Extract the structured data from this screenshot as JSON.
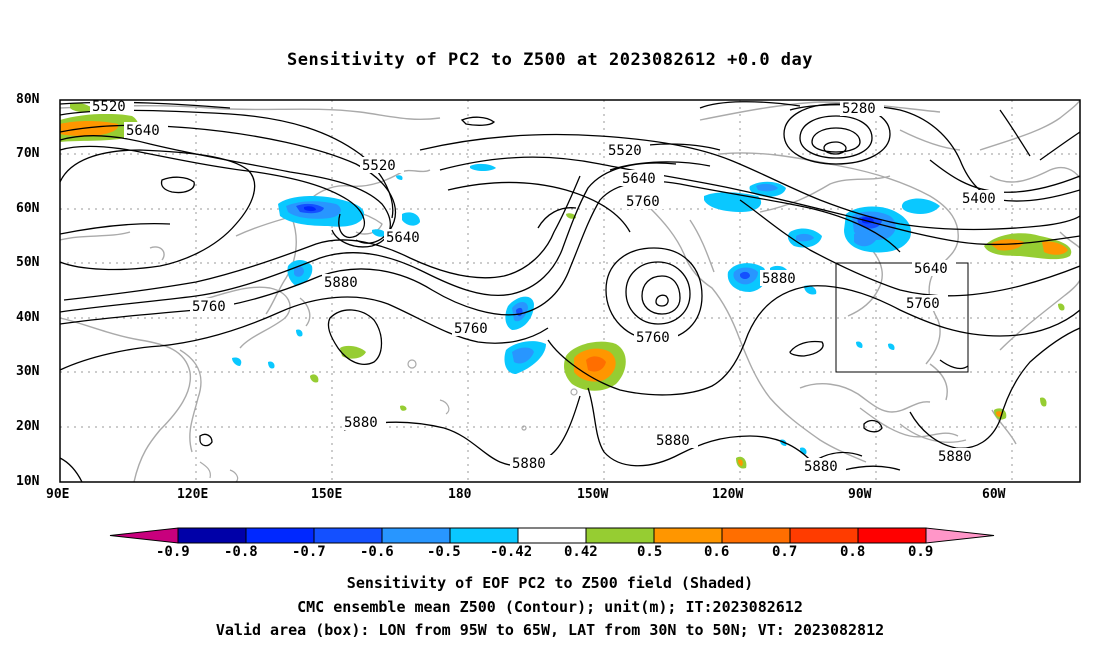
{
  "title": "Sensitivity of PC2 to Z500 at 2023082612 +0.0 day",
  "lat_labels": [
    "80N",
    "70N",
    "60N",
    "50N",
    "40N",
    "30N",
    "20N",
    "10N"
  ],
  "lon_labels": [
    "90E",
    "120E",
    "150E",
    "180",
    "150W",
    "120W",
    "90W",
    "60W"
  ],
  "contour_labels": {
    "c5520a": "5520",
    "c5640a": "5640",
    "c5520b": "5520",
    "c5640b": "5640",
    "c5760a": "5760",
    "c5880a": "5880",
    "c5760b": "5760",
    "c5520c": "5520",
    "c5640c": "5640",
    "c5760c": "5760",
    "c5760d": "5760",
    "c5880b": "5880",
    "c5880c": "5880",
    "c5280": "5280",
    "c5400": "5400",
    "c5640d": "5640",
    "c5760e": "5760",
    "c5880d": "5880",
    "c5880e": "5880",
    "c5880f": "5880",
    "c5880g": "5880"
  },
  "colorbar": {
    "labels": [
      "-0.9",
      "-0.8",
      "-0.7",
      "-0.6",
      "-0.5",
      "-0.42",
      "0.42",
      "0.5",
      "0.6",
      "0.7",
      "0.8",
      "0.9"
    ],
    "colors": [
      "#0000a8",
      "#0028ff",
      "#1450ff",
      "#2896ff",
      "#0ac8ff",
      "#ffffff",
      "#96cd32",
      "#ff9600",
      "#ff6e00",
      "#ff3c00",
      "#ff0000"
    ],
    "low_arrow_color": "#c8007d",
    "high_arrow_color": "#ff96c8"
  },
  "captions": [
    "Sensitivity of EOF PC2 to Z500 field (Shaded)",
    "CMC ensemble mean Z500 (Contour); unit(m); IT:2023082612",
    "Valid area (box): LON from 95W to 65W, LAT from 30N to 50N; VT: 2023082812"
  ]
}
